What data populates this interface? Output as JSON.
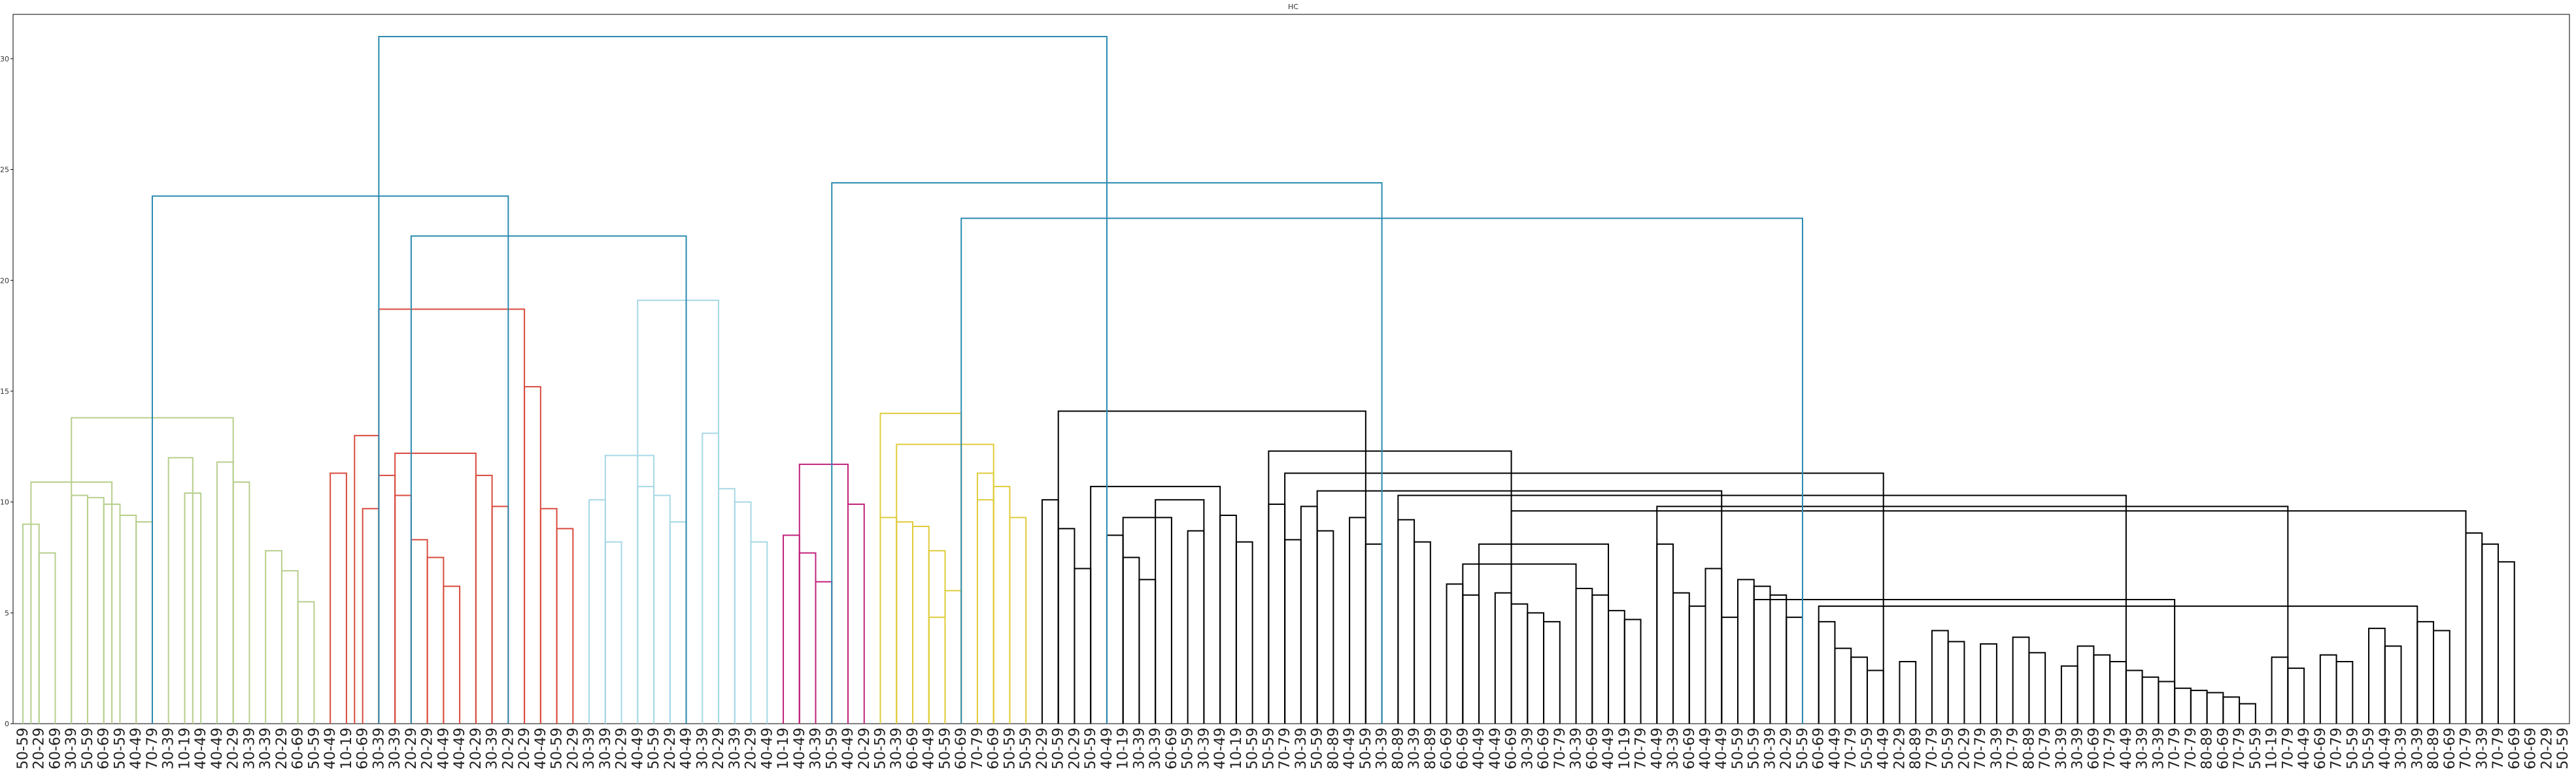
{
  "chart_data": {
    "type": "dendrogram",
    "title": "HC",
    "xlabel": "",
    "ylabel": "",
    "ylim": [
      0,
      32
    ],
    "yticks": [
      0,
      5,
      10,
      15,
      20,
      25,
      30
    ],
    "grid": false,
    "legend": "none",
    "cluster_colors": {
      "green": "#b7cf8c",
      "red": "#d94b3e",
      "lightblue": "#a6d8e6",
      "magenta": "#c0227c",
      "yellow": "#e0cc3c",
      "black": "#000000",
      "top": "#2a8ab0"
    },
    "leaves": [
      "50-59",
      "20-29",
      "60-69",
      "30-39",
      "50-59",
      "60-69",
      "50-59",
      "40-49",
      "70-79",
      "30-39",
      "10-19",
      "40-49",
      "40-49",
      "20-29",
      "30-39",
      "30-39",
      "20-29",
      "60-69",
      "50-59",
      "40-49",
      "10-19",
      "60-69",
      "30-39",
      "30-39",
      "20-29",
      "20-29",
      "40-49",
      "40-49",
      "20-29",
      "30-39",
      "20-29",
      "20-29",
      "40-49",
      "50-59",
      "20-29",
      "30-39",
      "30-39",
      "20-29",
      "40-49",
      "50-59",
      "20-29",
      "40-49",
      "30-39",
      "20-29",
      "30-39",
      "20-29",
      "40-49",
      "10-19",
      "40-49",
      "30-39",
      "50-59",
      "40-49",
      "20-29",
      "50-59",
      "30-39",
      "60-69",
      "40-49",
      "50-59",
      "60-69",
      "70-79",
      "60-69",
      "50-59",
      "50-59",
      "20-29",
      "50-59",
      "20-29",
      "50-59",
      "40-49",
      "10-19",
      "30-39",
      "30-39",
      "60-69",
      "50-59",
      "30-39",
      "40-49",
      "10-19",
      "50-59",
      "50-59",
      "70-79",
      "30-39",
      "50-59",
      "80-89",
      "40-49",
      "50-59",
      "30-39",
      "80-89",
      "30-39",
      "80-89",
      "60-69",
      "60-69",
      "40-49",
      "40-49",
      "60-69",
      "30-39",
      "60-69",
      "70-79",
      "30-39",
      "60-69",
      "40-49",
      "10-19",
      "70-79",
      "40-49",
      "30-39",
      "60-69",
      "40-49",
      "40-49",
      "50-59",
      "50-59",
      "30-39",
      "20-29",
      "50-59",
      "60-69",
      "40-49",
      "70-79",
      "50-59",
      "40-49",
      "20-29",
      "80-89",
      "70-79",
      "50-59",
      "20-29",
      "70-79",
      "30-39",
      "70-79",
      "80-89",
      "70-79",
      "30-39",
      "30-39",
      "60-69",
      "70-79",
      "40-49",
      "30-39",
      "30-39",
      "70-79",
      "70-79",
      "80-89",
      "60-69",
      "70-79",
      "50-59",
      "10-19",
      "70-79",
      "40-49",
      "60-69",
      "70-79",
      "50-59",
      "50-59",
      "40-49",
      "30-39",
      "30-39",
      "80-89",
      "60-69",
      "70-79",
      "30-39",
      "70-79",
      "60-69",
      "60-69",
      "20-29",
      "50-59"
    ],
    "links": [
      {
        "color": "green",
        "a": 0,
        "b": 1,
        "h": 9.0
      },
      {
        "color": "green",
        "a": 1,
        "b": 2,
        "h": 7.7
      },
      {
        "color": "green",
        "a": 3,
        "b": 4,
        "h": 10.3
      },
      {
        "color": "green",
        "a": 4,
        "b": 5,
        "h": 10.2
      },
      {
        "color": "green",
        "a": 5,
        "b": 6,
        "h": 9.9
      },
      {
        "color": "green",
        "a": 6,
        "b": 7,
        "h": 9.4
      },
      {
        "color": "green",
        "a": 7,
        "b": 8,
        "h": 9.1
      },
      {
        "color": "green",
        "a": 0.5,
        "b": 5.5,
        "h": 10.9
      },
      {
        "color": "green",
        "a": 10,
        "b": 11,
        "h": 10.4
      },
      {
        "color": "green",
        "a": 9,
        "b": 10.5,
        "h": 12.0
      },
      {
        "color": "green",
        "a": 12,
        "b": 13,
        "h": 11.8
      },
      {
        "color": "green",
        "a": 13,
        "b": 14,
        "h": 10.9
      },
      {
        "color": "green",
        "a": 15,
        "b": 16,
        "h": 7.8
      },
      {
        "color": "green",
        "a": 16,
        "b": 17,
        "h": 6.9
      },
      {
        "color": "green",
        "a": 17,
        "b": 18,
        "h": 5.5
      },
      {
        "color": "green",
        "a": 3,
        "b": 13,
        "h": 13.8
      },
      {
        "color": "red",
        "a": 19,
        "b": 20,
        "h": 11.3
      },
      {
        "color": "red",
        "a": 20.5,
        "b": 22,
        "h": 13.0
      },
      {
        "color": "red",
        "a": 21,
        "b": 22,
        "h": 9.7
      },
      {
        "color": "red",
        "a": 22,
        "b": 23,
        "h": 11.2
      },
      {
        "color": "red",
        "a": 23,
        "b": 24,
        "h": 10.3
      },
      {
        "color": "red",
        "a": 24,
        "b": 25,
        "h": 8.3
      },
      {
        "color": "red",
        "a": 25,
        "b": 26,
        "h": 7.5
      },
      {
        "color": "red",
        "a": 26,
        "b": 27,
        "h": 6.2
      },
      {
        "color": "red",
        "a": 28,
        "b": 29,
        "h": 11.2
      },
      {
        "color": "red",
        "a": 29,
        "b": 30,
        "h": 9.8
      },
      {
        "color": "red",
        "a": 23,
        "b": 28,
        "h": 12.2
      },
      {
        "color": "red",
        "a": 31,
        "b": 32,
        "h": 15.2
      },
      {
        "color": "red",
        "a": 32,
        "b": 33,
        "h": 9.7
      },
      {
        "color": "red",
        "a": 33,
        "b": 34,
        "h": 8.8
      },
      {
        "color": "red",
        "a": 22,
        "b": 31,
        "h": 18.7
      },
      {
        "color": "lightblue",
        "a": 35,
        "b": 36,
        "h": 10.1
      },
      {
        "color": "lightblue",
        "a": 36,
        "b": 37,
        "h": 8.2
      },
      {
        "color": "lightblue",
        "a": 38,
        "b": 39,
        "h": 10.7
      },
      {
        "color": "lightblue",
        "a": 39,
        "b": 40,
        "h": 10.3
      },
      {
        "color": "lightblue",
        "a": 40,
        "b": 41,
        "h": 9.1
      },
      {
        "color": "lightblue",
        "a": 36,
        "b": 39,
        "h": 12.1
      },
      {
        "color": "lightblue",
        "a": 42,
        "b": 43,
        "h": 13.1
      },
      {
        "color": "lightblue",
        "a": 43,
        "b": 44,
        "h": 10.6
      },
      {
        "color": "lightblue",
        "a": 44,
        "b": 45,
        "h": 10.0
      },
      {
        "color": "lightblue",
        "a": 45,
        "b": 46,
        "h": 8.2
      },
      {
        "color": "lightblue",
        "a": 38,
        "b": 43,
        "h": 19.1
      },
      {
        "color": "magenta",
        "a": 47,
        "b": 48,
        "h": 8.5
      },
      {
        "color": "magenta",
        "a": 48,
        "b": 49,
        "h": 7.7
      },
      {
        "color": "magenta",
        "a": 49,
        "b": 50,
        "h": 6.4
      },
      {
        "color": "magenta",
        "a": 51,
        "b": 52,
        "h": 9.9
      },
      {
        "color": "magenta",
        "a": 48,
        "b": 51,
        "h": 11.7
      },
      {
        "color": "yellow",
        "a": 53,
        "b": 54,
        "h": 9.3
      },
      {
        "color": "yellow",
        "a": 54,
        "b": 55,
        "h": 9.1
      },
      {
        "color": "yellow",
        "a": 55,
        "b": 56,
        "h": 8.9
      },
      {
        "color": "yellow",
        "a": 56,
        "b": 57,
        "h": 7.8
      },
      {
        "color": "yellow",
        "a": 57,
        "b": 58,
        "h": 6.0
      },
      {
        "color": "yellow",
        "a": 56,
        "b": 57,
        "h": 4.8
      },
      {
        "color": "yellow",
        "a": 59,
        "b": 60,
        "h": 11.3
      },
      {
        "color": "yellow",
        "a": 60,
        "b": 61,
        "h": 10.7
      },
      {
        "color": "yellow",
        "a": 61,
        "b": 62,
        "h": 9.3
      },
      {
        "color": "yellow",
        "a": 59,
        "b": 60,
        "h": 10.1
      },
      {
        "color": "yellow",
        "a": 54,
        "b": 60,
        "h": 12.6
      },
      {
        "color": "yellow",
        "a": 53,
        "b": 58,
        "h": 14.0
      },
      {
        "color": "black",
        "a": 63,
        "b": 64,
        "h": 10.1
      },
      {
        "color": "black",
        "a": 64,
        "b": 65,
        "h": 8.8
      },
      {
        "color": "black",
        "a": 65,
        "b": 66,
        "h": 7.0
      },
      {
        "color": "black",
        "a": 67,
        "b": 68,
        "h": 8.5
      },
      {
        "color": "black",
        "a": 68,
        "b": 69,
        "h": 7.5
      },
      {
        "color": "black",
        "a": 69,
        "b": 70,
        "h": 6.5
      },
      {
        "color": "black",
        "a": 68,
        "b": 71,
        "h": 9.3
      },
      {
        "color": "black",
        "a": 72,
        "b": 73,
        "h": 8.7
      },
      {
        "color": "black",
        "a": 70,
        "b": 73,
        "h": 10.1
      },
      {
        "color": "black",
        "a": 74,
        "b": 75,
        "h": 9.4
      },
      {
        "color": "black",
        "a": 75,
        "b": 76,
        "h": 8.2
      },
      {
        "color": "black",
        "a": 66,
        "b": 74,
        "h": 10.7
      },
      {
        "color": "black",
        "a": 77,
        "b": 78,
        "h": 9.9
      },
      {
        "color": "black",
        "a": 78,
        "b": 79,
        "h": 8.3
      },
      {
        "color": "black",
        "a": 79,
        "b": 80,
        "h": 9.8
      },
      {
        "color": "black",
        "a": 80,
        "b": 81,
        "h": 8.7
      },
      {
        "color": "black",
        "a": 82,
        "b": 83,
        "h": 9.3
      },
      {
        "color": "black",
        "a": 83,
        "b": 84,
        "h": 8.1
      },
      {
        "color": "black",
        "a": 85,
        "b": 86,
        "h": 9.2
      },
      {
        "color": "black",
        "a": 86,
        "b": 87,
        "h": 8.2
      },
      {
        "color": "black",
        "a": 88,
        "b": 89,
        "h": 6.3
      },
      {
        "color": "black",
        "a": 89,
        "b": 90,
        "h": 5.8
      },
      {
        "color": "black",
        "a": 91,
        "b": 92,
        "h": 5.9
      },
      {
        "color": "black",
        "a": 92,
        "b": 93,
        "h": 5.4
      },
      {
        "color": "black",
        "a": 93,
        "b": 94,
        "h": 5.0
      },
      {
        "color": "black",
        "a": 94,
        "b": 95,
        "h": 4.6
      },
      {
        "color": "black",
        "a": 96,
        "b": 97,
        "h": 6.1
      },
      {
        "color": "black",
        "a": 97,
        "b": 98,
        "h": 5.8
      },
      {
        "color": "black",
        "a": 98,
        "b": 99,
        "h": 5.1
      },
      {
        "color": "black",
        "a": 99,
        "b": 100,
        "h": 4.7
      },
      {
        "color": "black",
        "a": 89,
        "b": 96,
        "h": 7.2
      },
      {
        "color": "black",
        "a": 90,
        "b": 98,
        "h": 8.1
      },
      {
        "color": "black",
        "a": 101,
        "b": 102,
        "h": 8.1
      },
      {
        "color": "black",
        "a": 102,
        "b": 103,
        "h": 5.9
      },
      {
        "color": "black",
        "a": 103,
        "b": 104,
        "h": 5.3
      },
      {
        "color": "black",
        "a": 104,
        "b": 105,
        "h": 7.0
      },
      {
        "color": "black",
        "a": 105,
        "b": 106,
        "h": 4.8
      },
      {
        "color": "black",
        "a": 106,
        "b": 107,
        "h": 6.5
      },
      {
        "color": "black",
        "a": 107,
        "b": 108,
        "h": 6.2
      },
      {
        "color": "black",
        "a": 108,
        "b": 109,
        "h": 5.8
      },
      {
        "color": "black",
        "a": 109,
        "b": 110,
        "h": 4.8
      },
      {
        "color": "black",
        "a": 111,
        "b": 112,
        "h": 4.6
      },
      {
        "color": "black",
        "a": 112,
        "b": 113,
        "h": 3.4
      },
      {
        "color": "black",
        "a": 113,
        "b": 114,
        "h": 3.0
      },
      {
        "color": "black",
        "a": 114,
        "b": 115,
        "h": 2.4
      },
      {
        "color": "black",
        "a": 116,
        "b": 117,
        "h": 2.8
      },
      {
        "color": "black",
        "a": 118,
        "b": 119,
        "h": 4.2
      },
      {
        "color": "black",
        "a": 119,
        "b": 120,
        "h": 3.7
      },
      {
        "color": "black",
        "a": 121,
        "b": 122,
        "h": 3.6
      },
      {
        "color": "black",
        "a": 123,
        "b": 124,
        "h": 3.9
      },
      {
        "color": "black",
        "a": 124,
        "b": 125,
        "h": 3.2
      },
      {
        "color": "black",
        "a": 126,
        "b": 127,
        "h": 2.6
      },
      {
        "color": "black",
        "a": 127,
        "b": 128,
        "h": 3.5
      },
      {
        "color": "black",
        "a": 128,
        "b": 129,
        "h": 3.1
      },
      {
        "color": "black",
        "a": 129,
        "b": 130,
        "h": 2.8
      },
      {
        "color": "black",
        "a": 130,
        "b": 131,
        "h": 2.4
      },
      {
        "color": "black",
        "a": 131,
        "b": 132,
        "h": 2.1
      },
      {
        "color": "black",
        "a": 132,
        "b": 133,
        "h": 1.9
      },
      {
        "color": "black",
        "a": 133,
        "b": 134,
        "h": 1.6
      },
      {
        "color": "black",
        "a": 134,
        "b": 135,
        "h": 1.5
      },
      {
        "color": "black",
        "a": 135,
        "b": 136,
        "h": 1.4
      },
      {
        "color": "black",
        "a": 136,
        "b": 137,
        "h": 1.2
      },
      {
        "color": "black",
        "a": 137,
        "b": 138,
        "h": 0.9
      },
      {
        "color": "black",
        "a": 139,
        "b": 140,
        "h": 3.0
      },
      {
        "color": "black",
        "a": 140,
        "b": 141,
        "h": 2.5
      },
      {
        "color": "black",
        "a": 142,
        "b": 143,
        "h": 3.1
      },
      {
        "color": "black",
        "a": 143,
        "b": 144,
        "h": 2.8
      },
      {
        "color": "black",
        "a": 145,
        "b": 146,
        "h": 4.3
      },
      {
        "color": "black",
        "a": 146,
        "b": 147,
        "h": 3.5
      },
      {
        "color": "black",
        "a": 148,
        "b": 149,
        "h": 4.6
      },
      {
        "color": "black",
        "a": 149,
        "b": 150,
        "h": 4.2
      },
      {
        "color": "black",
        "a": 151,
        "b": 152,
        "h": 8.6
      },
      {
        "color": "black",
        "a": 152,
        "b": 153,
        "h": 8.1
      },
      {
        "color": "black",
        "a": 153,
        "b": 154,
        "h": 7.3
      },
      {
        "color": "black",
        "a": 111,
        "b": 148,
        "h": 5.3
      },
      {
        "color": "black",
        "a": 107,
        "b": 133,
        "h": 5.6
      },
      {
        "color": "black",
        "a": 101,
        "b": 140,
        "h": 9.8
      },
      {
        "color": "black",
        "a": 92,
        "b": 151,
        "h": 9.6
      },
      {
        "color": "black",
        "a": 85,
        "b": 130,
        "h": 10.3
      },
      {
        "color": "black",
        "a": 80,
        "b": 105,
        "h": 10.5
      },
      {
        "color": "black",
        "a": 78,
        "b": 115,
        "h": 11.3
      },
      {
        "color": "black",
        "a": 77,
        "b": 92,
        "h": 12.3
      },
      {
        "color": "black",
        "a": 64,
        "b": 83,
        "h": 14.1
      },
      {
        "color": "top",
        "a": 8,
        "b": 30,
        "h": 23.8
      },
      {
        "color": "top",
        "a": 24,
        "b": 41,
        "h": 22.0
      },
      {
        "color": "top",
        "a": 58,
        "b": 110,
        "h": 22.8
      },
      {
        "color": "top",
        "a": 50,
        "b": 84,
        "h": 24.4
      },
      {
        "color": "top",
        "a": 22,
        "b": 67,
        "h": 31.0
      }
    ]
  }
}
